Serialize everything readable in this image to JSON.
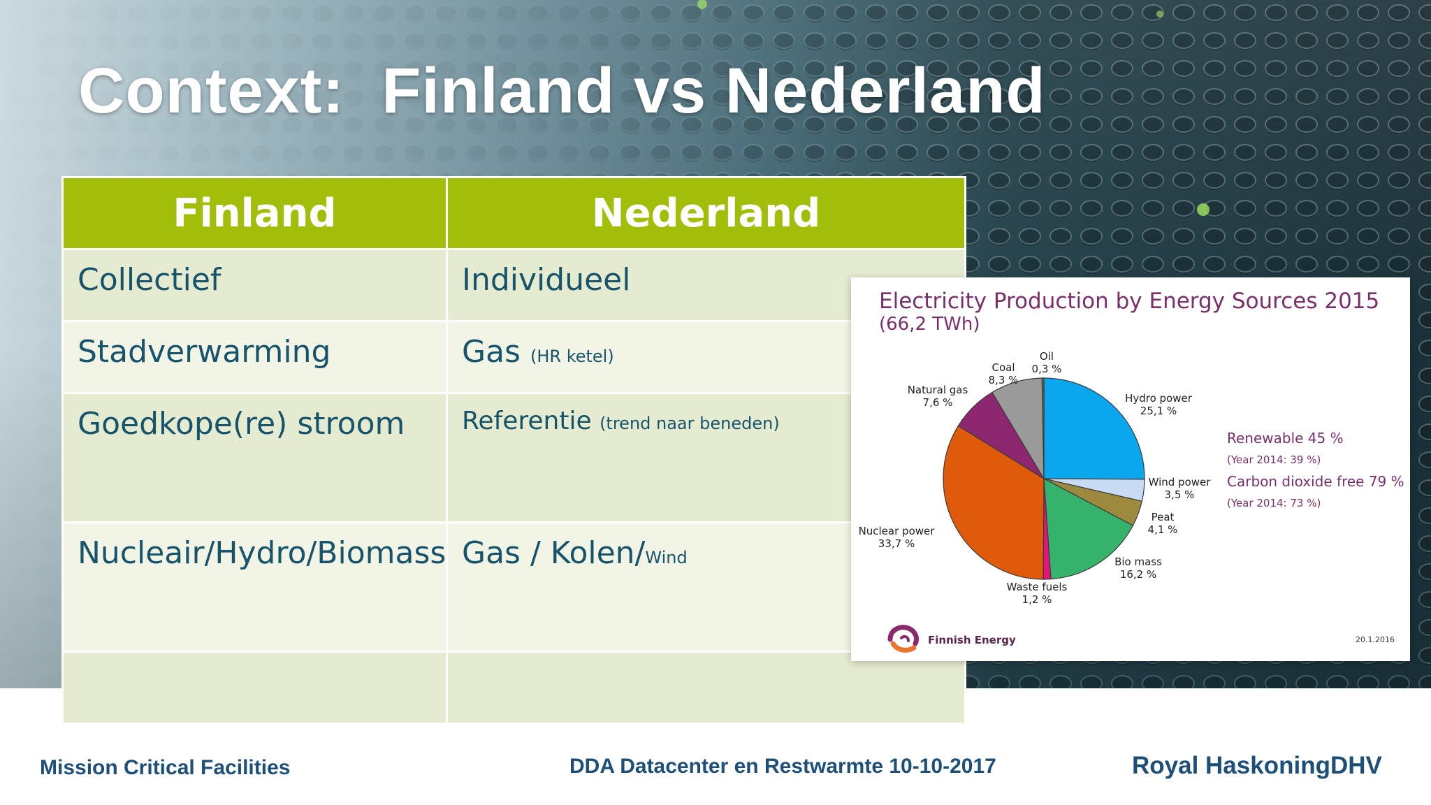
{
  "slide": {
    "title": "Context:  Finland vs Nederland"
  },
  "table": {
    "headers": [
      "Finland",
      "Nederland"
    ],
    "rows": [
      {
        "finland": "Collectief",
        "nederland": "Individueel",
        "note": ""
      },
      {
        "finland": "Stadverwarming",
        "nederland": "Gas",
        "note": "(HR ketel)"
      },
      {
        "finland": "Goedkope(re) stroom",
        "nederland": "Referentie",
        "note": "(trend naar beneden)"
      },
      {
        "finland": "Nucleair/Hydro/Biomass",
        "nederland": "Gas / Kolen/",
        "note": "Wind"
      },
      {
        "finland": "",
        "nederland": "",
        "note": ""
      }
    ]
  },
  "chart_data": {
    "type": "pie",
    "title": "Electricity Production by Energy Sources 2015",
    "subtitle": "(66,2 TWh)",
    "slices": [
      {
        "label": "Hydro power",
        "value_text": "25,1 %",
        "value": 25.1,
        "color": "#0aa7ef"
      },
      {
        "label": "Wind power",
        "value_text": "3,5 %",
        "value": 3.5,
        "color": "#c8daf4"
      },
      {
        "label": "Peat",
        "value_text": "4,1 %",
        "value": 4.1,
        "color": "#9e8a3f"
      },
      {
        "label": "Bio mass",
        "value_text": "16,2 %",
        "value": 16.2,
        "color": "#35b26b"
      },
      {
        "label": "Waste fuels",
        "value_text": "1,2 %",
        "value": 1.2,
        "color": "#e5147c"
      },
      {
        "label": "Nuclear power",
        "value_text": "33,7 %",
        "value": 33.7,
        "color": "#e05a0c"
      },
      {
        "label": "Natural gas",
        "value_text": "7,6 %",
        "value": 7.6,
        "color": "#8c2770"
      },
      {
        "label": "Coal",
        "value_text": "8,3 %",
        "value": 8.3,
        "color": "#9a9a9a"
      },
      {
        "label": "Oil",
        "value_text": "0,3 %",
        "value": 0.3,
        "color": "#6d6d45"
      }
    ],
    "notes": {
      "renewable": "Renewable 45 %",
      "renewable_prev": "(Year 2014: 39 %)",
      "co2_free": "Carbon dioxide free 79 %",
      "co2_free_prev": "(Year 2014: 73 %)"
    },
    "source": "Finnish Energy",
    "date": "20.1.2016"
  },
  "footer": {
    "left": "Mission Critical Facilities",
    "center": "DDA Datacenter en Restwarmte  10-10-2017",
    "brand": "Royal HaskoningDHV"
  },
  "colors": {
    "header_green": "#a3be0a",
    "row_light": "#f2f5e6",
    "row_dark": "#e5ebd0",
    "text_blue": "#17546b",
    "chart_purple": "#7a2f6a",
    "footer_blue": "#1e4f78"
  }
}
